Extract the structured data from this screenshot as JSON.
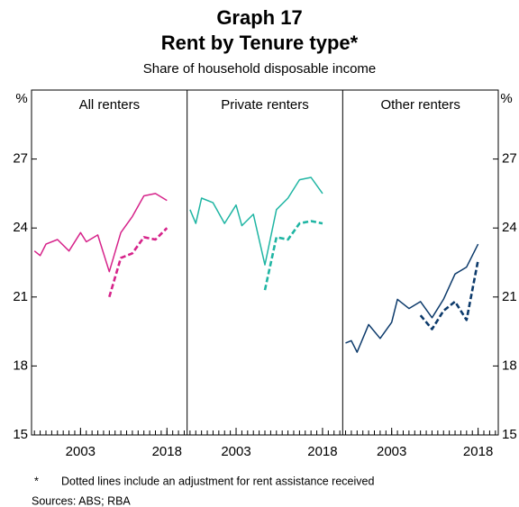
{
  "chart_data": {
    "type": "line",
    "title": "Graph 17",
    "heading": "Rent by Tenure type*",
    "subtitle": "Share of household disposable income",
    "y_unit": "%",
    "ylim": [
      15,
      30
    ],
    "yticks": [
      15,
      18,
      21,
      24,
      27
    ],
    "xlim": [
      1994.5,
      2021.5
    ],
    "xticks": [
      2003,
      2018
    ],
    "x_minor_ticks": [
      1995,
      1996,
      1997,
      1998,
      1999,
      2000,
      2001,
      2002,
      2003,
      2004,
      2005,
      2006,
      2007,
      2008,
      2009,
      2010,
      2011,
      2012,
      2013,
      2014,
      2015,
      2016,
      2017,
      2018,
      2019,
      2020,
      2021
    ],
    "x": [
      1995,
      1996,
      1997,
      1999,
      2001,
      2003,
      2004,
      2006,
      2008,
      2010,
      2012,
      2014,
      2016,
      2018
    ],
    "panels": [
      {
        "title": "All renters",
        "series": [
          {
            "color": "#d6238a",
            "dashed": false,
            "values": [
              23.0,
              22.8,
              23.3,
              23.5,
              23.0,
              23.8,
              23.4,
              23.7,
              22.1,
              23.8,
              24.5,
              25.4,
              25.5,
              25.2
            ]
          },
          {
            "color": "#d6238a",
            "dashed": true,
            "values": [
              null,
              null,
              null,
              null,
              null,
              null,
              null,
              null,
              21.0,
              22.7,
              22.9,
              23.6,
              23.5,
              24.0
            ]
          }
        ]
      },
      {
        "title": "Private renters",
        "series": [
          {
            "color": "#1fb5a3",
            "dashed": false,
            "values": [
              24.8,
              24.2,
              25.3,
              25.1,
              24.2,
              25.0,
              24.1,
              24.6,
              22.4,
              24.8,
              25.3,
              26.1,
              26.2,
              25.5
            ]
          },
          {
            "color": "#1fb5a3",
            "dashed": true,
            "values": [
              null,
              null,
              null,
              null,
              null,
              null,
              null,
              null,
              21.3,
              23.6,
              23.5,
              24.2,
              24.3,
              24.2
            ]
          }
        ]
      },
      {
        "title": "Other renters",
        "series": [
          {
            "color": "#0c3a6b",
            "dashed": false,
            "values": [
              19.0,
              19.1,
              18.6,
              19.8,
              19.2,
              19.9,
              20.9,
              20.5,
              20.8,
              20.1,
              20.9,
              22.0,
              22.3,
              23.3
            ]
          },
          {
            "color": "#0c3a6b",
            "dashed": true,
            "values": [
              null,
              null,
              null,
              null,
              null,
              null,
              null,
              null,
              20.2,
              19.6,
              20.4,
              20.8,
              20.0,
              22.6
            ]
          }
        ]
      }
    ],
    "footnote_mark": "*",
    "footnote": "Dotted lines include an adjustment for rent assistance received",
    "sources": "Sources: ABS; RBA"
  }
}
